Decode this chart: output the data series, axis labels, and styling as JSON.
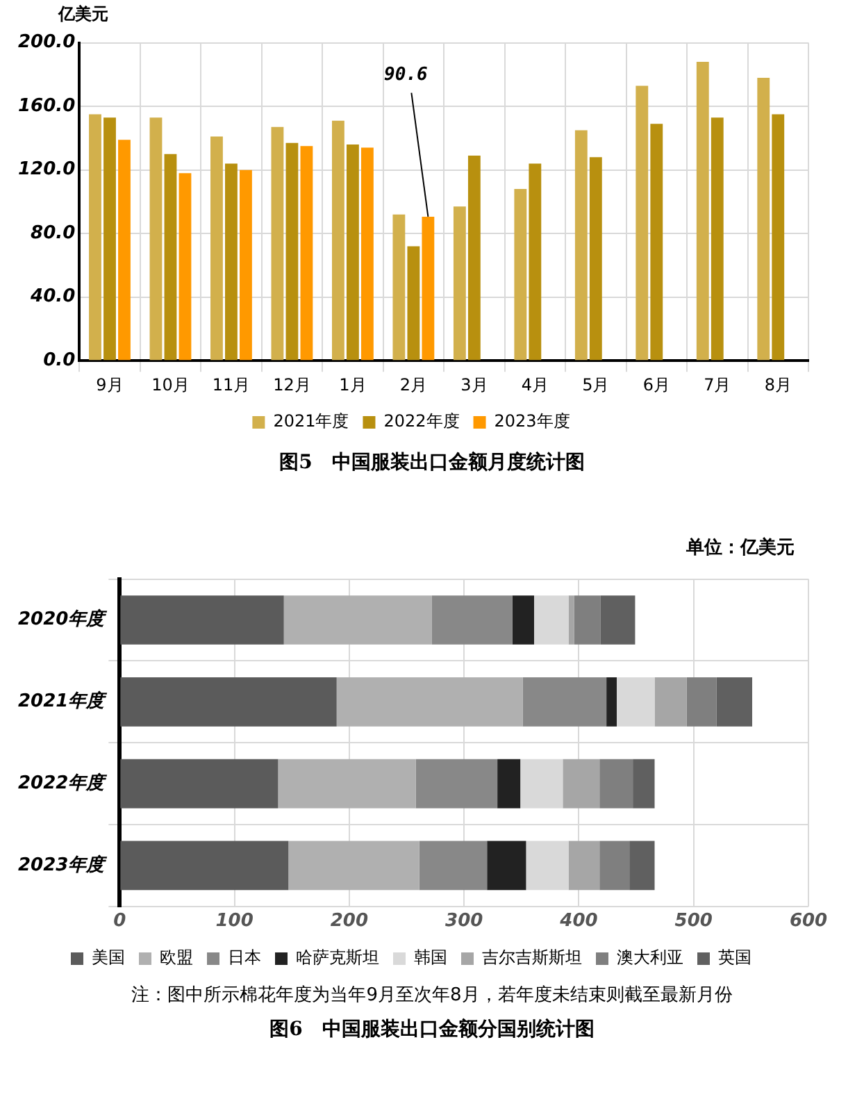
{
  "chart_data": [
    {
      "type": "bar",
      "title": "图5　中国服装出口金额月度统计图",
      "ylabel": "亿美元",
      "categories": [
        "9月",
        "10月",
        "11月",
        "12月",
        "1月",
        "2月",
        "3月",
        "4月",
        "5月",
        "6月",
        "7月",
        "8月"
      ],
      "series": [
        {
          "name": "2021年度",
          "color": "#d2b04c",
          "values": [
            155,
            153,
            141,
            147,
            151,
            92,
            97,
            108,
            145,
            173,
            188,
            178
          ]
        },
        {
          "name": "2022年度",
          "color": "#b8900f",
          "values": [
            153,
            130,
            124,
            137,
            136,
            72,
            129,
            124,
            128,
            149,
            153,
            155
          ]
        },
        {
          "name": "2023年度",
          "color": "#ff9900",
          "values": [
            139,
            118,
            120,
            135,
            134,
            90.6,
            null,
            null,
            null,
            null,
            null,
            null
          ],
          "value_labels": [
            null,
            null,
            null,
            null,
            null,
            "90.6",
            null,
            null,
            null,
            null,
            null,
            null
          ]
        }
      ],
      "ylim": [
        0,
        200
      ],
      "yticks": [
        {
          "value": 0,
          "label": "0.0"
        },
        {
          "value": 40,
          "label": "40.0"
        },
        {
          "value": 80,
          "label": "80.0"
        },
        {
          "value": 120,
          "label": "120.0"
        },
        {
          "value": 160,
          "label": "160.0"
        },
        {
          "value": 200,
          "label": "200.0"
        }
      ],
      "grid": true,
      "legend": "bottom"
    },
    {
      "type": "bar",
      "title": "图6　中国服装出口金额分国别统计图",
      "orientation": "horizontal",
      "stacked": true,
      "categories": [
        "2020年度",
        "2021年度",
        "2022年度",
        "2023年度"
      ],
      "series": [
        {
          "name": "美国",
          "color": "#5b5b5b",
          "values": [
            143,
            189,
            138,
            147
          ]
        },
        {
          "name": "欧盟",
          "color": "#b0b0b0",
          "values": [
            129,
            162,
            120,
            114
          ]
        },
        {
          "name": "日本",
          "color": "#888888",
          "values": [
            70,
            73,
            71,
            59
          ]
        },
        {
          "name": "哈萨克斯坦",
          "color": "#222222",
          "values": [
            19,
            9,
            20,
            34
          ]
        },
        {
          "name": "韩国",
          "color": "#d9d9d9",
          "values": [
            30,
            33,
            37,
            37
          ]
        },
        {
          "name": "吉尔吉斯斯坦",
          "color": "#a6a6a6",
          "values": [
            5,
            28,
            32,
            27
          ]
        },
        {
          "name": "澳大利亚",
          "color": "#7f7f7f",
          "values": [
            23,
            26,
            29,
            26
          ]
        },
        {
          "name": "英国",
          "color": "#606060",
          "values": [
            30,
            31,
            19,
            22
          ]
        }
      ],
      "xlim": [
        0,
        600
      ],
      "xticks": [
        0,
        100,
        200,
        300,
        400,
        500,
        600
      ],
      "grid": true,
      "legend": "bottom",
      "annotations": [
        "单位：亿美元",
        "注：图中所示棉花年度为当年9月至次年8月，若年度未结束则截至最新月份"
      ]
    }
  ]
}
